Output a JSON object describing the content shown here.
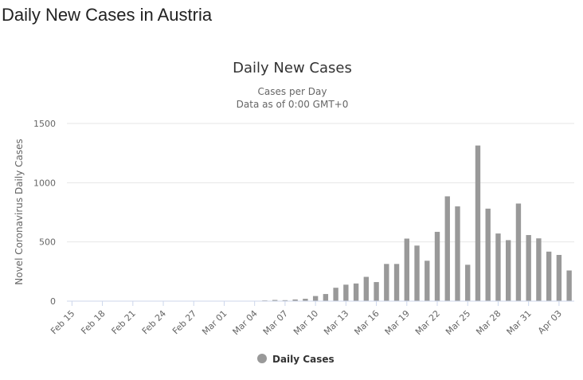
{
  "page": {
    "title": "Daily New Cases in Austria"
  },
  "chart_data": {
    "type": "bar",
    "title": "Daily New Cases",
    "subtitle_line1": "Cases per Day",
    "subtitle_line2": "Data as of 0:00 GMT+0",
    "ylabel": "Novel Coronavirus Daily Cases",
    "xlabel": "",
    "ylim": [
      0,
      1500
    ],
    "yticks": [
      "0",
      "500",
      "1000",
      "1500"
    ],
    "grid": true,
    "legend_position": "bottom-center",
    "bar_color": "#999999",
    "categories": [
      "Feb 15",
      "Feb 16",
      "Feb 17",
      "Feb 18",
      "Feb 19",
      "Feb 20",
      "Feb 21",
      "Feb 22",
      "Feb 23",
      "Feb 24",
      "Feb 25",
      "Feb 26",
      "Feb 27",
      "Feb 28",
      "Feb 29",
      "Mar 01",
      "Mar 02",
      "Mar 03",
      "Mar 04",
      "Mar 05",
      "Mar 06",
      "Mar 07",
      "Mar 08",
      "Mar 09",
      "Mar 10",
      "Mar 11",
      "Mar 12",
      "Mar 13",
      "Mar 14",
      "Mar 15",
      "Mar 16",
      "Mar 17",
      "Mar 18",
      "Mar 19",
      "Mar 20",
      "Mar 21",
      "Mar 22",
      "Mar 23",
      "Mar 24",
      "Mar 25",
      "Mar 26",
      "Mar 27",
      "Mar 28",
      "Mar 29",
      "Mar 30",
      "Mar 31",
      "Apr 01",
      "Apr 02",
      "Apr 03",
      "Apr 04"
    ],
    "xtick_labels": [
      "Feb 15",
      "Feb 18",
      "Feb 21",
      "Feb 24",
      "Feb 27",
      "Mar 01",
      "Mar 04",
      "Mar 07",
      "Mar 10",
      "Mar 13",
      "Mar 16",
      "Mar 19",
      "Mar 22",
      "Mar 25",
      "Mar 28",
      "Mar 31",
      "Apr 03"
    ],
    "series": [
      {
        "name": "Daily Cases",
        "values": [
          0,
          0,
          0,
          0,
          0,
          0,
          0,
          0,
          0,
          0,
          0,
          0,
          0,
          0,
          0,
          0,
          0,
          0,
          0,
          6,
          10,
          8,
          14,
          20,
          43,
          60,
          113,
          139,
          149,
          205,
          161,
          314,
          314,
          528,
          469,
          341,
          585,
          885,
          800,
          307,
          1314,
          781,
          571,
          515,
          824,
          558,
          530,
          418,
          390,
          259
        ]
      }
    ]
  }
}
